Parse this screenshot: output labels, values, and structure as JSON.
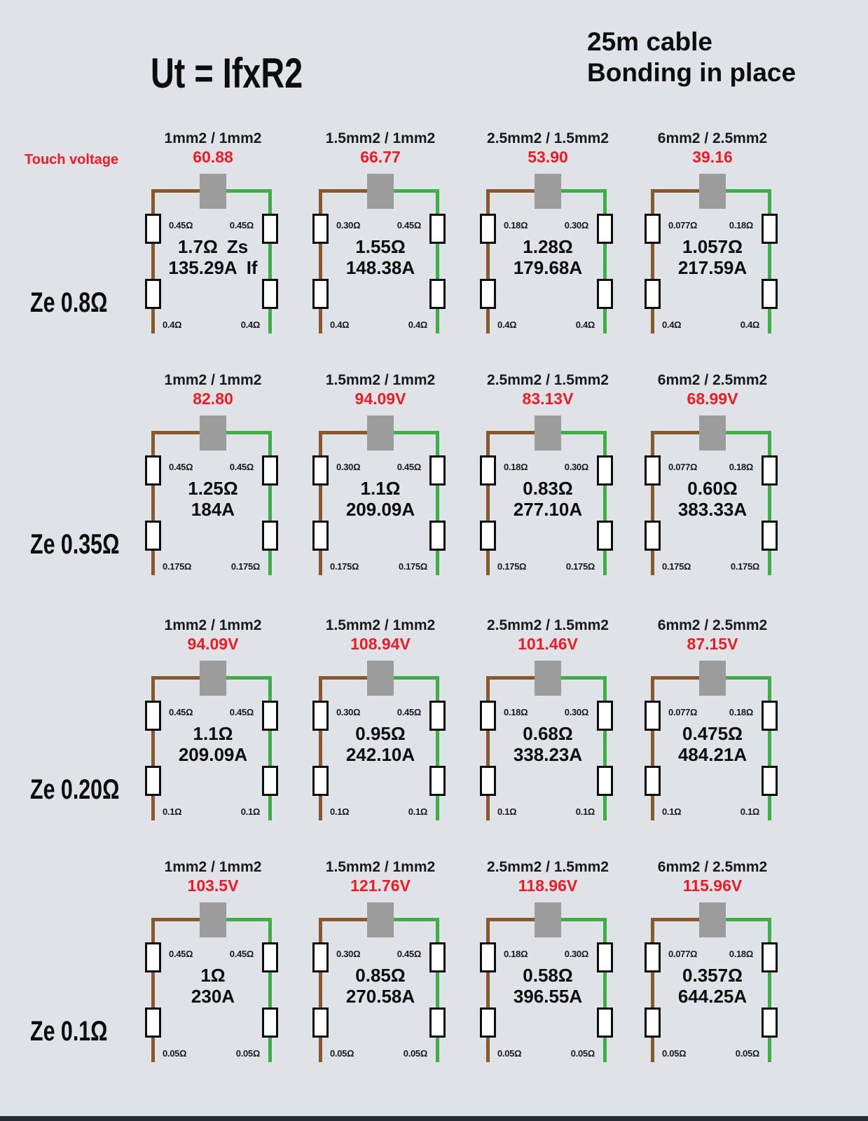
{
  "title": "Ut = IfxR2",
  "subtitle": {
    "line1": "25m cable",
    "line2": "Bonding in place"
  },
  "touch_voltage_label": "Touch voltage",
  "colors": {
    "background": "#dfe3e8",
    "line_conductor_brown": "#8a592b",
    "cpc_green": "#3cb044",
    "junction_gray": "#9c9c9c",
    "touch_voltage_red": "#ed1c24",
    "text_black": "#0d0d0d",
    "bottom_bar": "#272c34"
  },
  "rows": [
    {
      "ze_label": "Ze 0.8Ω",
      "cells": [
        {
          "header": "1mm2 / 1mm2",
          "touch_voltage": "60.88",
          "left_r1": "0.45Ω",
          "right_r1": "0.45Ω",
          "zs": "1.7Ω",
          "zs_suffix": "Zs",
          "fault_current": "135.29A",
          "if_suffix": "If",
          "left_r2": "0.4Ω",
          "right_r2": "0.4Ω"
        },
        {
          "header": "1.5mm2 / 1mm2",
          "touch_voltage": "66.77",
          "left_r1": "0.30Ω",
          "right_r1": "0.45Ω",
          "zs": "1.55Ω",
          "zs_suffix": "",
          "fault_current": "148.38A",
          "if_suffix": "",
          "left_r2": "0.4Ω",
          "right_r2": "0.4Ω"
        },
        {
          "header": "2.5mm2 / 1.5mm2",
          "touch_voltage": "53.90",
          "left_r1": "0.18Ω",
          "right_r1": "0.30Ω",
          "zs": "1.28Ω",
          "zs_suffix": "",
          "fault_current": "179.68A",
          "if_suffix": "",
          "left_r2": "0.4Ω",
          "right_r2": "0.4Ω"
        },
        {
          "header": "6mm2 / 2.5mm2",
          "touch_voltage": "39.16",
          "left_r1": "0.077Ω",
          "right_r1": "0.18Ω",
          "zs": "1.057Ω",
          "zs_suffix": "",
          "fault_current": "217.59A",
          "if_suffix": "",
          "left_r2": "0.4Ω",
          "right_r2": "0.4Ω"
        }
      ]
    },
    {
      "ze_label": "Ze 0.35Ω",
      "cells": [
        {
          "header": "1mm2 / 1mm2",
          "touch_voltage": "82.80",
          "left_r1": "0.45Ω",
          "right_r1": "0.45Ω",
          "zs": "1.25Ω",
          "zs_suffix": "",
          "fault_current": "184A",
          "if_suffix": "",
          "left_r2": "0.175Ω",
          "right_r2": "0.175Ω"
        },
        {
          "header": "1.5mm2 / 1mm2",
          "touch_voltage": "94.09V",
          "left_r1": "0.30Ω",
          "right_r1": "0.45Ω",
          "zs": "1.1Ω",
          "zs_suffix": "",
          "fault_current": "209.09A",
          "if_suffix": "",
          "left_r2": "0.175Ω",
          "right_r2": "0.175Ω"
        },
        {
          "header": "2.5mm2 / 1.5mm2",
          "touch_voltage": "83.13V",
          "left_r1": "0.18Ω",
          "right_r1": "0.30Ω",
          "zs": "0.83Ω",
          "zs_suffix": "",
          "fault_current": "277.10A",
          "if_suffix": "",
          "left_r2": "0.175Ω",
          "right_r2": "0.175Ω"
        },
        {
          "header": "6mm2 / 2.5mm2",
          "touch_voltage": "68.99V",
          "left_r1": "0.077Ω",
          "right_r1": "0.18Ω",
          "zs": "0.60Ω",
          "zs_suffix": "",
          "fault_current": "383.33A",
          "if_suffix": "",
          "left_r2": "0.175Ω",
          "right_r2": "0.175Ω"
        }
      ]
    },
    {
      "ze_label": "Ze 0.20Ω",
      "cells": [
        {
          "header": "1mm2 / 1mm2",
          "touch_voltage": "94.09V",
          "left_r1": "0.45Ω",
          "right_r1": "0.45Ω",
          "zs": "1.1Ω",
          "zs_suffix": "",
          "fault_current": "209.09A",
          "if_suffix": "",
          "left_r2": "0.1Ω",
          "right_r2": "0.1Ω"
        },
        {
          "header": "1.5mm2 / 1mm2",
          "touch_voltage": "108.94V",
          "left_r1": "0.30Ω",
          "right_r1": "0.45Ω",
          "zs": "0.95Ω",
          "zs_suffix": "",
          "fault_current": "242.10A",
          "if_suffix": "",
          "left_r2": "0.1Ω",
          "right_r2": "0.1Ω"
        },
        {
          "header": "2.5mm2 / 1.5mm2",
          "touch_voltage": "101.46V",
          "left_r1": "0.18Ω",
          "right_r1": "0.30Ω",
          "zs": "0.68Ω",
          "zs_suffix": "",
          "fault_current": "338.23A",
          "if_suffix": "",
          "left_r2": "0.1Ω",
          "right_r2": "0.1Ω"
        },
        {
          "header": "6mm2 / 2.5mm2",
          "touch_voltage": "87.15V",
          "left_r1": "0.077Ω",
          "right_r1": "0.18Ω",
          "zs": "0.475Ω",
          "zs_suffix": "",
          "fault_current": "484.21A",
          "if_suffix": "",
          "left_r2": "0.1Ω",
          "right_r2": "0.1Ω"
        }
      ]
    },
    {
      "ze_label": "Ze 0.1Ω",
      "cells": [
        {
          "header": "1mm2 / 1mm2",
          "touch_voltage": "103.5V",
          "left_r1": "0.45Ω",
          "right_r1": "0.45Ω",
          "zs": "1Ω",
          "zs_suffix": "",
          "fault_current": "230A",
          "if_suffix": "",
          "left_r2": "0.05Ω",
          "right_r2": "0.05Ω"
        },
        {
          "header": "1.5mm2 / 1mm2",
          "touch_voltage": "121.76V",
          "left_r1": "0.30Ω",
          "right_r1": "0.45Ω",
          "zs": "0.85Ω",
          "zs_suffix": "",
          "fault_current": "270.58A",
          "if_suffix": "",
          "left_r2": "0.05Ω",
          "right_r2": "0.05Ω"
        },
        {
          "header": "2.5mm2 / 1.5mm2",
          "touch_voltage": "118.96V",
          "left_r1": "0.18Ω",
          "right_r1": "0.30Ω",
          "zs": "0.58Ω",
          "zs_suffix": "",
          "fault_current": "396.55A",
          "if_suffix": "",
          "left_r2": "0.05Ω",
          "right_r2": "0.05Ω"
        },
        {
          "header": "6mm2 / 2.5mm2",
          "touch_voltage": "115.96V",
          "left_r1": "0.077Ω",
          "right_r1": "0.18Ω",
          "zs": "0.357Ω",
          "zs_suffix": "",
          "fault_current": "644.25A",
          "if_suffix": "",
          "left_r2": "0.05Ω",
          "right_r2": "0.05Ω"
        }
      ]
    }
  ]
}
